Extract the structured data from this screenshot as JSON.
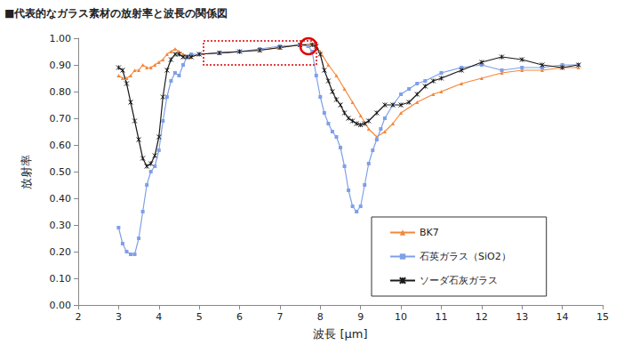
{
  "chart_data": {
    "type": "line",
    "title": "■代表的なガラス素材の放射率と波長の関係図",
    "x_label": "波長 [μm]",
    "y_label": "放射率",
    "xlim": [
      2,
      15
    ],
    "xticks": [
      2,
      3,
      4,
      5,
      6,
      7,
      8,
      9,
      10,
      11,
      12,
      13,
      14,
      15
    ],
    "ylim": [
      0,
      1
    ],
    "yticks": [
      {
        "value": 0,
        "label": "0.00"
      },
      {
        "value": 0.1,
        "label": "0.10"
      },
      {
        "value": 0.2,
        "label": "0.20"
      },
      {
        "value": 0.3,
        "label": "0.30"
      },
      {
        "value": 0.4,
        "label": "0.40"
      },
      {
        "value": 0.5,
        "label": "0.50"
      },
      {
        "value": 0.6,
        "label": "0.60"
      },
      {
        "value": 0.7,
        "label": "0.70"
      },
      {
        "value": 0.8,
        "label": "0.80"
      },
      {
        "value": 0.9,
        "label": "0.90"
      },
      {
        "value": 1,
        "label": "1.00"
      }
    ],
    "grid": false,
    "legend": "lower right",
    "series": [
      {
        "name": "BK7",
        "color": "#f4873a",
        "marker": "triangle",
        "x": [
          3.0,
          3.1,
          3.2,
          3.3,
          3.4,
          3.5,
          3.6,
          3.7,
          3.8,
          3.9,
          4.0,
          4.1,
          4.2,
          4.3,
          4.4,
          4.5,
          4.6,
          4.7,
          4.8,
          5.0,
          5.5,
          6.0,
          6.5,
          7.0,
          7.5,
          7.8,
          8.0,
          8.2,
          8.4,
          8.6,
          8.8,
          9.0,
          9.2,
          9.4,
          9.6,
          9.8,
          10.0,
          10.4,
          10.8,
          11.0,
          11.5,
          12.0,
          12.5,
          13.0,
          13.5,
          14.0,
          14.4
        ],
        "values": [
          0.86,
          0.85,
          0.85,
          0.86,
          0.88,
          0.88,
          0.9,
          0.89,
          0.89,
          0.9,
          0.91,
          0.92,
          0.94,
          0.95,
          0.96,
          0.95,
          0.94,
          0.93,
          0.93,
          0.94,
          0.945,
          0.95,
          0.955,
          0.965,
          0.975,
          0.98,
          0.95,
          0.9,
          0.86,
          0.81,
          0.76,
          0.71,
          0.66,
          0.63,
          0.65,
          0.68,
          0.72,
          0.76,
          0.79,
          0.8,
          0.83,
          0.85,
          0.87,
          0.88,
          0.88,
          0.89,
          0.89
        ]
      },
      {
        "name": "石英ガラス（SiO2）",
        "color": "#7f9fe8",
        "marker": "square",
        "x": [
          3.0,
          3.1,
          3.2,
          3.3,
          3.4,
          3.5,
          3.6,
          3.7,
          3.8,
          3.9,
          4.0,
          4.1,
          4.2,
          4.3,
          4.4,
          4.5,
          4.6,
          4.7,
          4.8,
          5.0,
          5.5,
          6.0,
          6.5,
          7.0,
          7.5,
          7.7,
          7.8,
          7.9,
          8.0,
          8.1,
          8.2,
          8.3,
          8.4,
          8.5,
          8.6,
          8.7,
          8.8,
          8.9,
          9.0,
          9.1,
          9.2,
          9.3,
          9.4,
          9.5,
          9.6,
          9.8,
          10.0,
          10.2,
          10.4,
          10.6,
          11.0,
          11.5,
          12.0,
          12.5,
          13.0,
          13.5,
          14.0,
          14.4
        ],
        "values": [
          0.29,
          0.23,
          0.2,
          0.19,
          0.19,
          0.25,
          0.35,
          0.45,
          0.5,
          0.52,
          0.58,
          0.69,
          0.78,
          0.84,
          0.87,
          0.86,
          0.9,
          0.93,
          0.94,
          0.94,
          0.945,
          0.95,
          0.96,
          0.97,
          0.975,
          0.97,
          0.95,
          0.86,
          0.78,
          0.72,
          0.68,
          0.65,
          0.63,
          0.59,
          0.52,
          0.43,
          0.37,
          0.35,
          0.37,
          0.45,
          0.53,
          0.58,
          0.62,
          0.66,
          0.7,
          0.75,
          0.79,
          0.81,
          0.83,
          0.84,
          0.87,
          0.89,
          0.9,
          0.88,
          0.89,
          0.89,
          0.9,
          0.9
        ]
      },
      {
        "name": "ソーダ石灰ガラス",
        "color": "#1a1a1a",
        "marker": "x",
        "x": [
          3.0,
          3.1,
          3.2,
          3.3,
          3.4,
          3.5,
          3.6,
          3.7,
          3.8,
          3.9,
          4.0,
          4.1,
          4.2,
          4.3,
          4.4,
          4.5,
          4.6,
          4.7,
          4.8,
          5.0,
          5.5,
          6.0,
          6.5,
          7.0,
          7.5,
          7.8,
          7.9,
          8.0,
          8.1,
          8.2,
          8.3,
          8.4,
          8.5,
          8.6,
          8.7,
          8.8,
          8.9,
          9.0,
          9.1,
          9.2,
          9.4,
          9.6,
          9.8,
          10.0,
          10.2,
          10.4,
          10.6,
          10.8,
          11.0,
          11.5,
          12.0,
          12.5,
          13.0,
          13.5,
          14.0,
          14.4
        ],
        "values": [
          0.89,
          0.88,
          0.83,
          0.76,
          0.69,
          0.62,
          0.55,
          0.52,
          0.53,
          0.56,
          0.63,
          0.78,
          0.88,
          0.92,
          0.94,
          0.94,
          0.93,
          0.93,
          0.93,
          0.94,
          0.945,
          0.95,
          0.955,
          0.965,
          0.975,
          0.975,
          0.97,
          0.94,
          0.88,
          0.84,
          0.8,
          0.77,
          0.75,
          0.72,
          0.7,
          0.69,
          0.68,
          0.675,
          0.68,
          0.69,
          0.72,
          0.75,
          0.75,
          0.75,
          0.76,
          0.79,
          0.82,
          0.84,
          0.85,
          0.88,
          0.91,
          0.93,
          0.92,
          0.9,
          0.89,
          0.9
        ]
      }
    ]
  }
}
